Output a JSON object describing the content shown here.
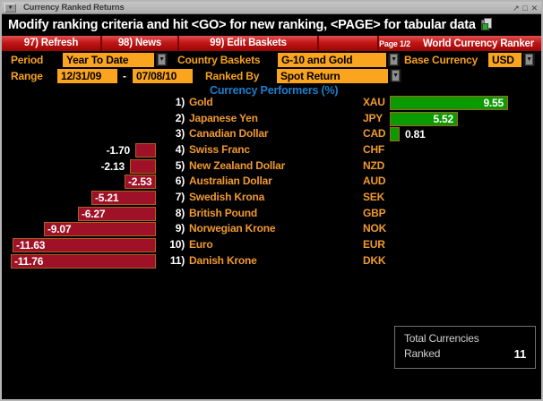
{
  "window": {
    "title": "Currency Ranked Returns",
    "controls": {
      "restore": "↗",
      "maximize": "□",
      "close": "✕"
    },
    "menu_button": "▼"
  },
  "message_bar": {
    "text": "Modify ranking criteria and hit <GO> for new ranking, <PAGE> for tabular data",
    "icon": "copy-page-icon"
  },
  "toolbar": {
    "items": [
      {
        "label": "97) Refresh"
      },
      {
        "label": "98) News"
      },
      {
        "label": "99) Edit Baskets"
      }
    ],
    "page_indicator": "Page 1/2",
    "app_title": "World Currency Ranker"
  },
  "filters": {
    "period": {
      "label": "Period",
      "value": "Year To Date"
    },
    "country_baskets": {
      "label": "Country Baskets",
      "value": "G-10 and Gold"
    },
    "base_currency": {
      "label": "Base Currency",
      "value": "USD"
    },
    "range": {
      "label": "Range",
      "start": "12/31/09",
      "separator": "-",
      "end": "07/08/10"
    },
    "ranked_by": {
      "label": "Ranked By",
      "value": "Spot Return"
    }
  },
  "chart_data": {
    "type": "bar",
    "orientation": "horizontal",
    "title": "Currency Performers  (%)",
    "xlabel": "",
    "ylabel": "",
    "xlim": [
      -12,
      10
    ],
    "grid": false,
    "colors": {
      "positive": "#0a9a02",
      "negative": "#9e1126",
      "bar_border": "#aa611f"
    },
    "rows": [
      {
        "rank": "1)",
        "name": "Gold",
        "code": "XAU",
        "value": 9.55,
        "display": "9.55"
      },
      {
        "rank": "2)",
        "name": "Japanese Yen",
        "code": "JPY",
        "value": 5.52,
        "display": "5.52"
      },
      {
        "rank": "3)",
        "name": "Canadian Dollar",
        "code": "CAD",
        "value": 0.81,
        "display": "0.81"
      },
      {
        "rank": "4)",
        "name": "Swiss Franc",
        "code": "CHF",
        "value": -1.7,
        "display": "-1.70"
      },
      {
        "rank": "5)",
        "name": "New Zealand Dollar",
        "code": "NZD",
        "value": -2.13,
        "display": "-2.13"
      },
      {
        "rank": "6)",
        "name": "Australian Dollar",
        "code": "AUD",
        "value": -2.53,
        "display": "-2.53"
      },
      {
        "rank": "7)",
        "name": "Swedish Krona",
        "code": "SEK",
        "value": -5.21,
        "display": "-5.21"
      },
      {
        "rank": "8)",
        "name": "British Pound",
        "code": "GBP",
        "value": -6.27,
        "display": "-6.27"
      },
      {
        "rank": "9)",
        "name": "Norwegian Krone",
        "code": "NOK",
        "value": -9.07,
        "display": "-9.07"
      },
      {
        "rank": "10)",
        "name": "Euro",
        "code": "EUR",
        "value": -11.63,
        "display": "-11.63"
      },
      {
        "rank": "11)",
        "name": "Danish Krone",
        "code": "DKK",
        "value": -11.76,
        "display": "-11.76"
      }
    ]
  },
  "total_box": {
    "line1": "Total Currencies",
    "line2": "Ranked",
    "value": "11"
  }
}
